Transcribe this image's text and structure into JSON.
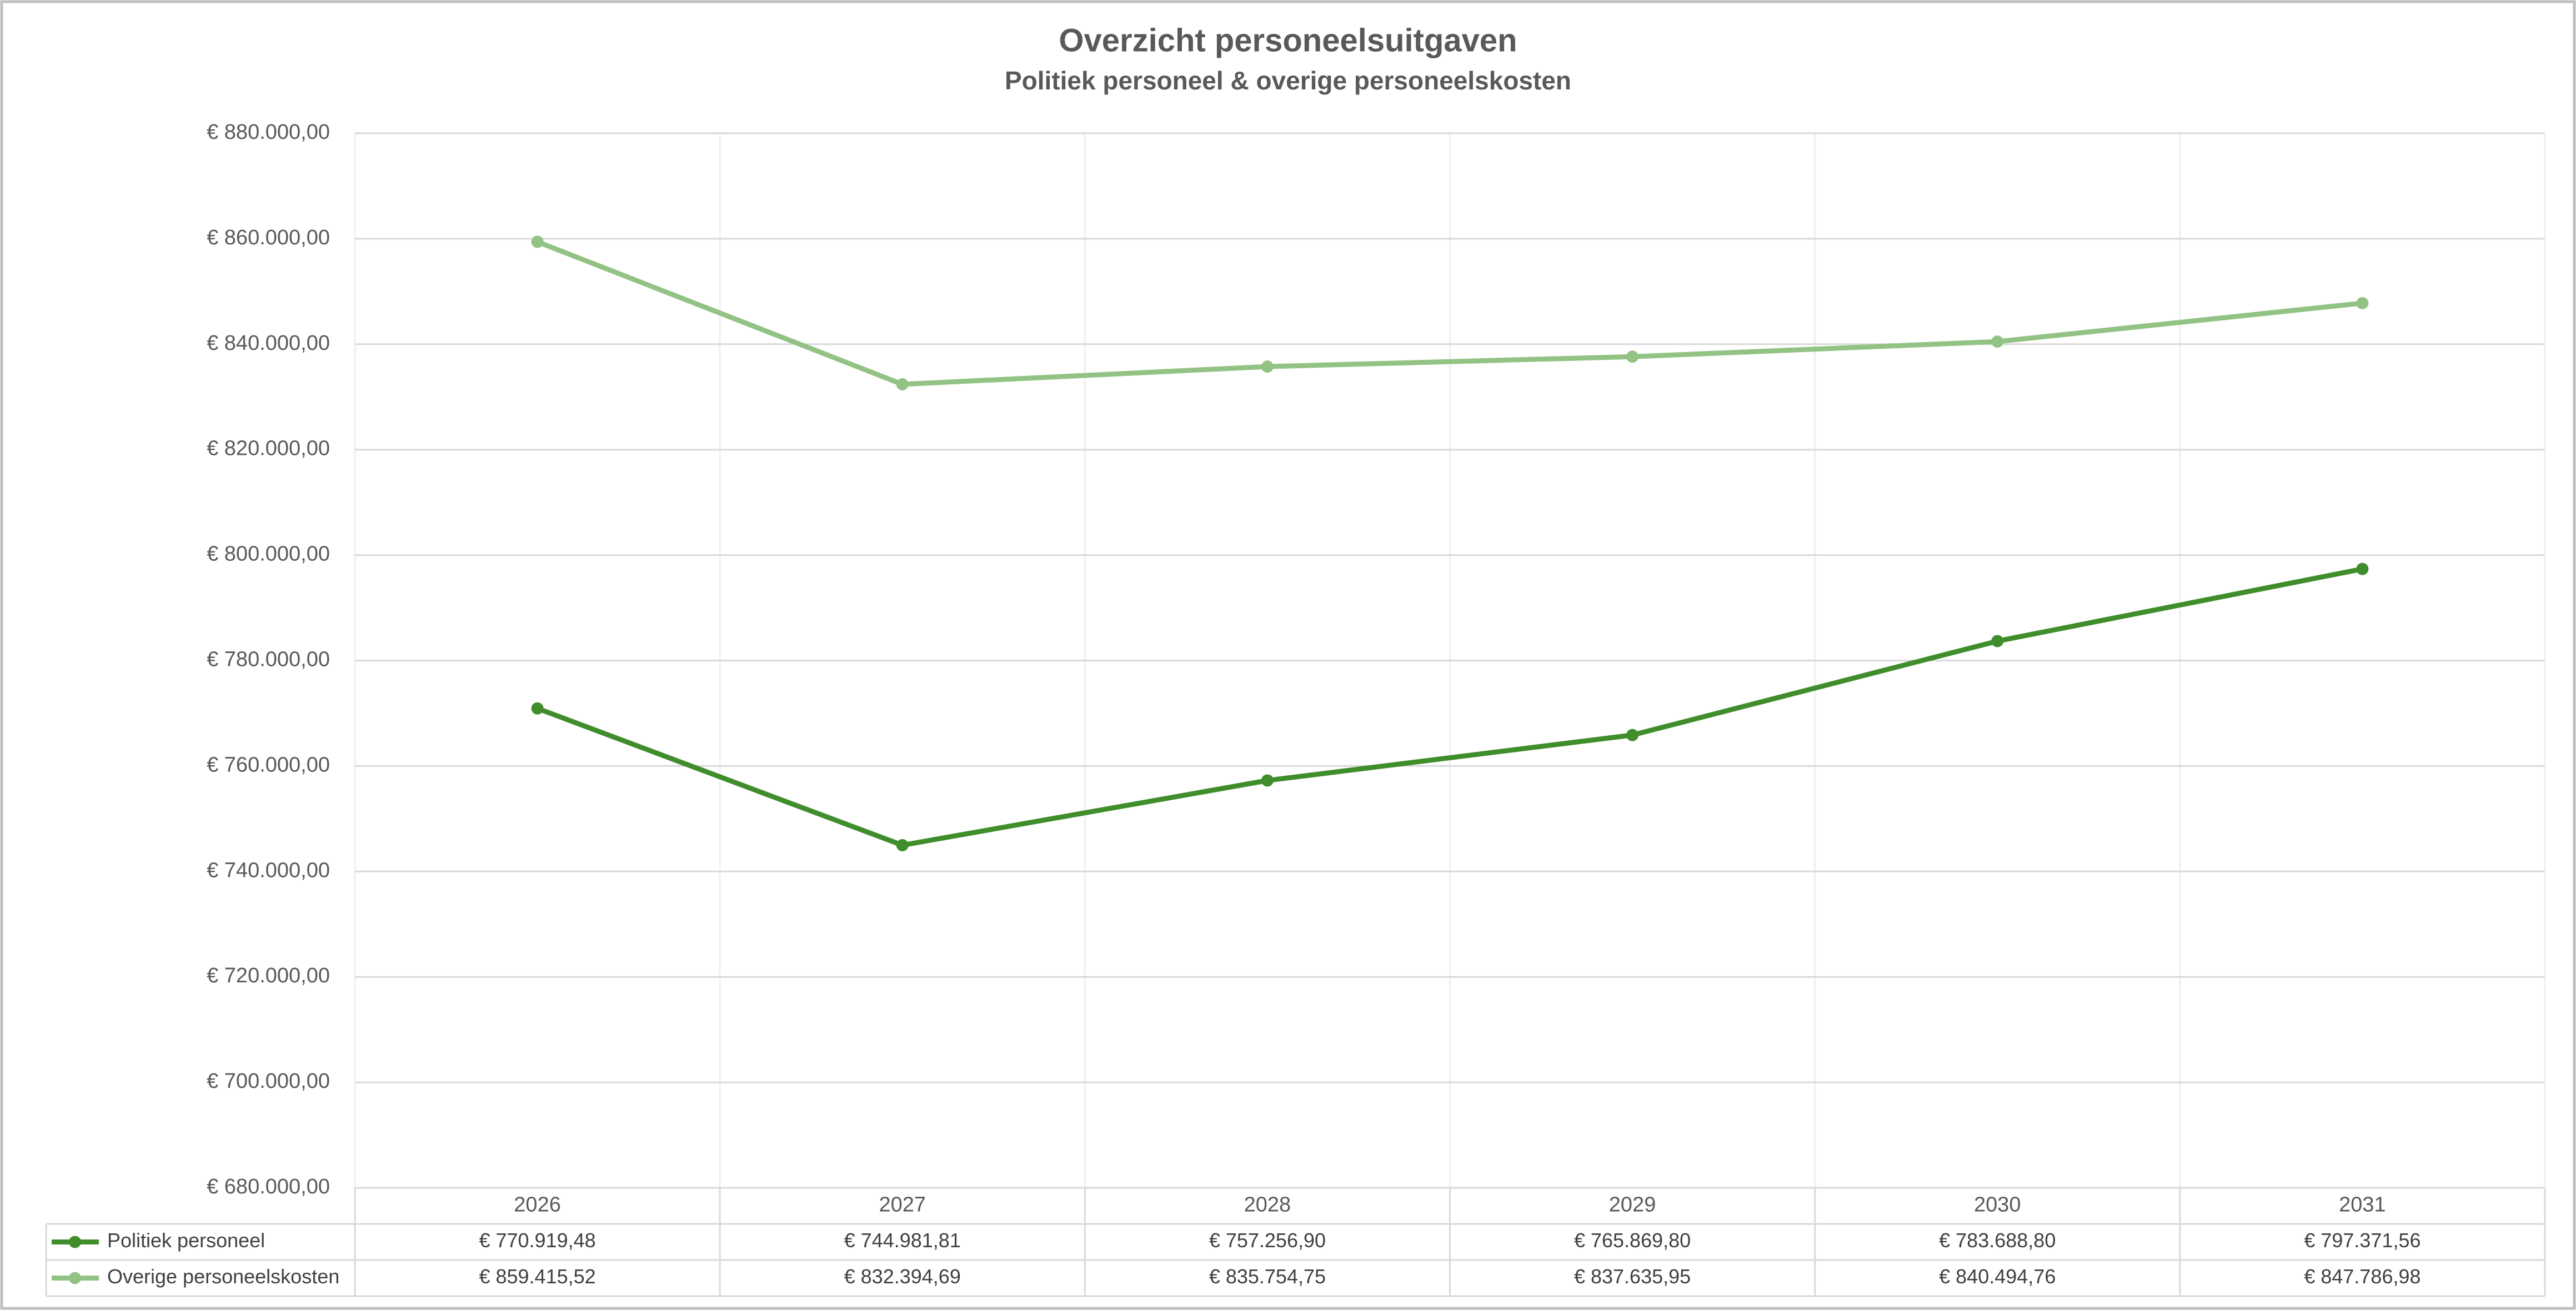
{
  "chart_data": {
    "type": "line",
    "title": "Overzicht personeelsuitgaven",
    "subtitle": "Politiek personeel & overige personeelskosten",
    "categories": [
      "2026",
      "2027",
      "2028",
      "2029",
      "2030",
      "2031"
    ],
    "series": [
      {
        "name": "Politiek personeel",
        "color": "#3f8d2b",
        "values": [
          770919.48,
          744981.81,
          757256.9,
          765869.8,
          783688.8,
          797371.56
        ],
        "value_labels": [
          "€ 770.919,48",
          "€ 744.981,81",
          "€ 757.256,90",
          "€ 765.869,80",
          "€ 783.688,80",
          "€ 797.371,56"
        ]
      },
      {
        "name": "Overige personeelskosten",
        "color": "#93c384",
        "values": [
          859415.52,
          832394.69,
          835754.75,
          837635.95,
          840494.76,
          847786.98
        ],
        "value_labels": [
          "€ 859.415,52",
          "€ 832.394,69",
          "€ 835.754,75",
          "€ 837.635,95",
          "€ 840.494,76",
          "€ 847.786,98"
        ]
      }
    ],
    "ylim": [
      680000,
      880000
    ],
    "yticks": [
      {
        "value": 680000,
        "label": "€ 680.000,00"
      },
      {
        "value": 700000,
        "label": "€ 700.000,00"
      },
      {
        "value": 720000,
        "label": "€ 720.000,00"
      },
      {
        "value": 740000,
        "label": "€ 740.000,00"
      },
      {
        "value": 760000,
        "label": "€ 760.000,00"
      },
      {
        "value": 780000,
        "label": "€ 780.000,00"
      },
      {
        "value": 800000,
        "label": "€ 800.000,00"
      },
      {
        "value": 820000,
        "label": "€ 820.000,00"
      },
      {
        "value": 840000,
        "label": "€ 840.000,00"
      },
      {
        "value": 860000,
        "label": "€ 860.000,00"
      },
      {
        "value": 880000,
        "label": "€ 880.000,00"
      }
    ],
    "grid": true,
    "data_table": true
  }
}
